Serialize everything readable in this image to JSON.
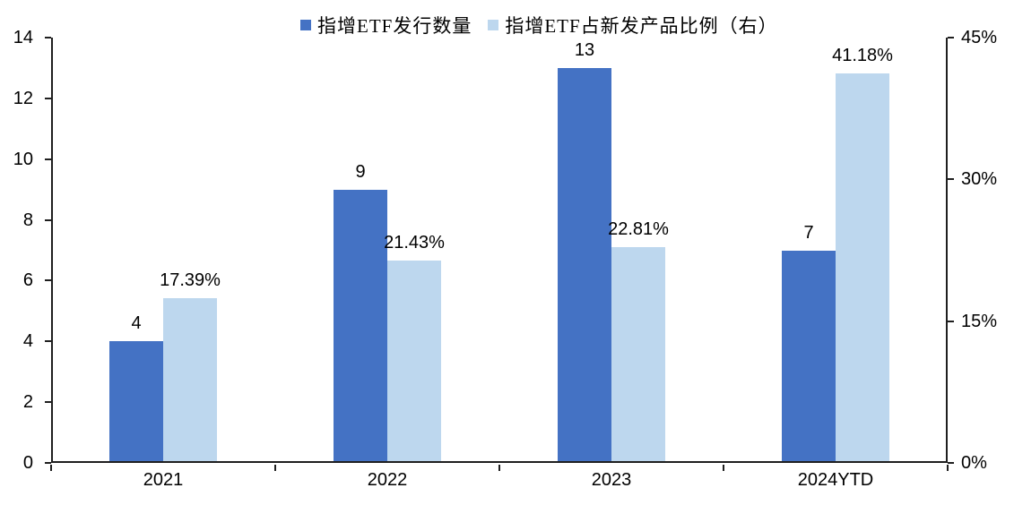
{
  "legend": {
    "items": [
      {
        "label": "指增ETF发行数量",
        "color": "#4472C4"
      },
      {
        "label": "指增ETF占新发产品比例（右）",
        "color": "#BDD7EE"
      }
    ],
    "position": "top"
  },
  "chart_data": {
    "type": "bar",
    "categories": [
      "2021",
      "2022",
      "2023",
      "2024YTD"
    ],
    "series": [
      {
        "name": "指增ETF发行数量",
        "axis": "left",
        "color": "#4472C4",
        "values": [
          4,
          9,
          13,
          7
        ],
        "labels": [
          "4",
          "9",
          "13",
          "7"
        ]
      },
      {
        "name": "指增ETF占新发产品比例（右）",
        "axis": "right",
        "color": "#BDD7EE",
        "values": [
          17.39,
          21.43,
          22.81,
          41.18
        ],
        "labels": [
          "17.39%",
          "21.43%",
          "22.81%",
          "41.18%"
        ]
      }
    ],
    "axis_left": {
      "min": 0,
      "max": 14,
      "ticks": [
        0,
        2,
        4,
        6,
        8,
        10,
        12,
        14
      ],
      "tick_labels": [
        "0",
        "2",
        "4",
        "6",
        "8",
        "10",
        "12",
        "14"
      ]
    },
    "axis_right": {
      "min": 0,
      "max": 45,
      "ticks": [
        0,
        15,
        30,
        45
      ],
      "tick_labels": [
        "0%",
        "15%",
        "30%",
        "45%"
      ]
    },
    "title": "",
    "xlabel": "",
    "ylabel": "",
    "grid": false,
    "background": "#ffffff",
    "axis_color": "#1f1f1f",
    "legend_position": "top"
  }
}
